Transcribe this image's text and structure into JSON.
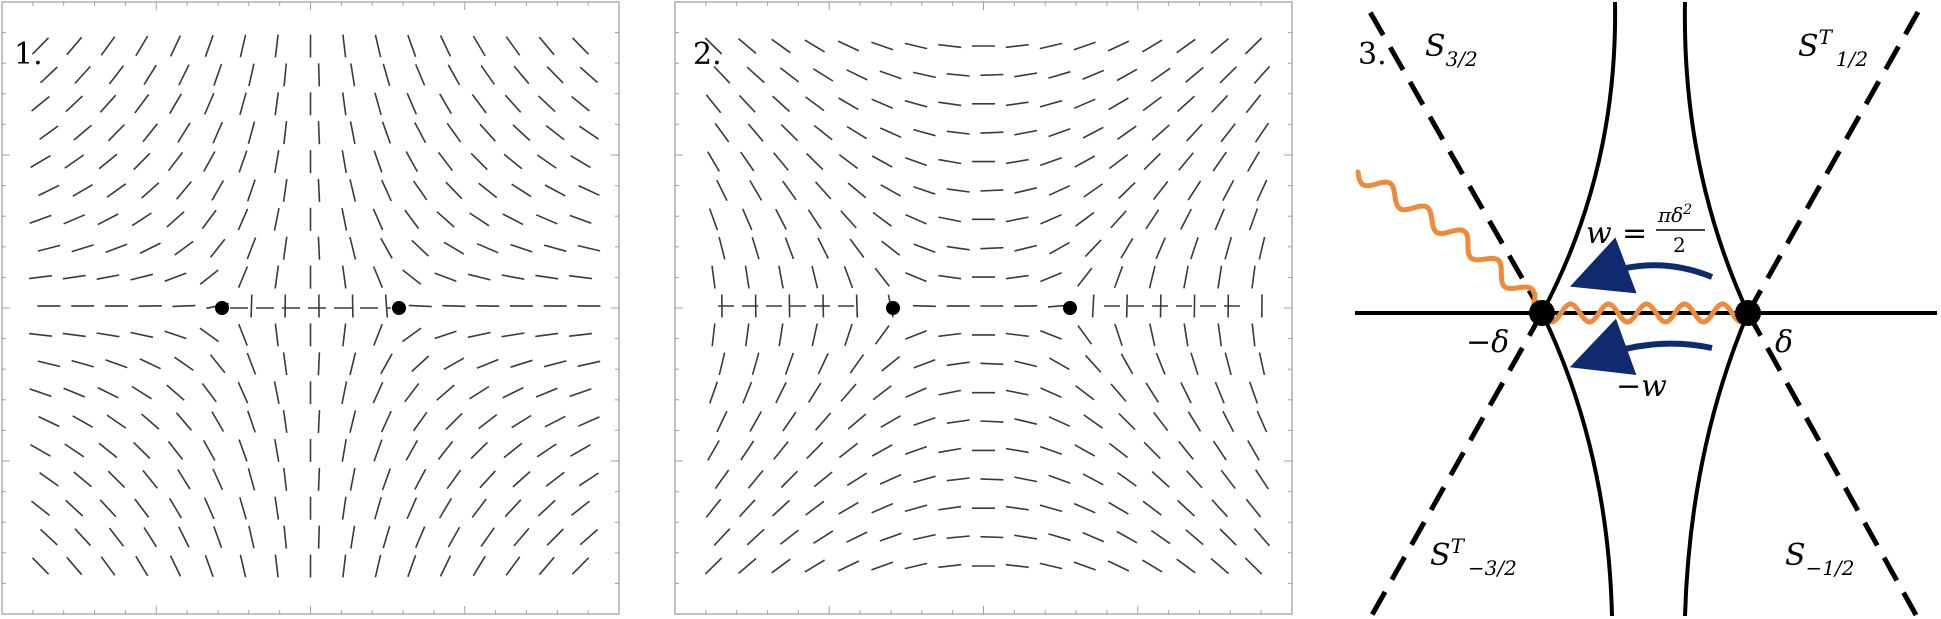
{
  "panels": [
    {
      "label": "1."
    },
    {
      "label": "2."
    },
    {
      "label": "3."
    }
  ],
  "panel3": {
    "sectors": {
      "top_left": {
        "base": "S",
        "sup": "",
        "sub": "3/2"
      },
      "top_right": {
        "base": "S",
        "sup": "T",
        "sub": "1/2"
      },
      "bottom_left": {
        "base": "S",
        "sup": "T",
        "sub": "−3/2"
      },
      "bottom_right": {
        "base": "S",
        "sup": "",
        "sub": "−1/2"
      }
    },
    "points": {
      "left": "−δ",
      "right": "δ"
    },
    "upper_arrow": {
      "lhs": "w",
      "eq": "=",
      "num": "πδ",
      "num_power": "2",
      "den": "2"
    },
    "lower_arrow": {
      "label": "−w"
    },
    "colors": {
      "branch_cut": "#EE8A3A",
      "arrow": "#0F2A6E",
      "curve": "#000000"
    }
  }
}
